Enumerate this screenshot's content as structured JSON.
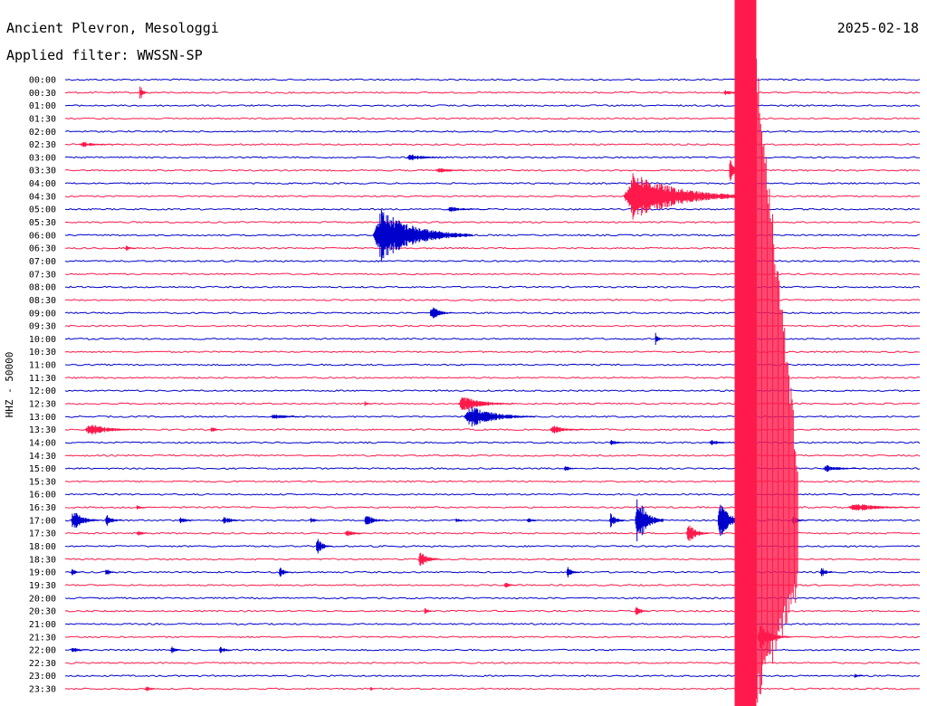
{
  "header": {
    "station": "Ancient Plevron, Mesologgi",
    "date": "2025-02-18",
    "filter": "Applied filter: WWSSN-SP"
  },
  "chart_data": {
    "type": "line",
    "title": "",
    "ylabel": "HHZ - 50000",
    "xlabel": "",
    "grid": false,
    "legend": "none",
    "trace_colors": [
      "#0000cc",
      "#ff1a4b"
    ],
    "tick_labels": [
      "00:00",
      "00:30",
      "01:00",
      "01:30",
      "02:00",
      "02:30",
      "03:00",
      "03:30",
      "04:00",
      "04:30",
      "05:00",
      "05:30",
      "06:00",
      "06:30",
      "07:00",
      "07:30",
      "08:00",
      "08:30",
      "09:00",
      "09:30",
      "10:00",
      "10:30",
      "11:00",
      "11:30",
      "12:00",
      "12:30",
      "13:00",
      "13:30",
      "14:00",
      "14:30",
      "15:00",
      "15:30",
      "16:00",
      "16:30",
      "17:00",
      "17:30",
      "18:00",
      "18:30",
      "19:00",
      "19:30",
      "20:00",
      "20:30",
      "21:00",
      "21:30",
      "22:00",
      "22:30",
      "23:00",
      "23:30"
    ],
    "x_range_minutes": [
      0,
      30
    ],
    "large_event": {
      "start_minute": 23.5,
      "rows": [
        "00:00",
        "23:30"
      ]
    },
    "events": [
      {
        "row": "00:30",
        "minute": 2.6,
        "amplitude": 10,
        "duration": 0.3
      },
      {
        "row": "00:30",
        "minute": 23.1,
        "amplitude": 3,
        "duration": 1
      },
      {
        "row": "02:30",
        "minute": 0.5,
        "amplitude": 3,
        "duration": 1.5
      },
      {
        "row": "03:00",
        "minute": 12.0,
        "amplitude": 4,
        "duration": 1.5
      },
      {
        "row": "03:30",
        "minute": 13.0,
        "amplitude": 3,
        "duration": 1.5
      },
      {
        "row": "03:30",
        "minute": 23.3,
        "amplitude": 14,
        "duration": 0.5
      },
      {
        "row": "04:30",
        "minute": 19.6,
        "amplitude": 28,
        "duration": 4.5
      },
      {
        "row": "05:00",
        "minute": 13.4,
        "amplitude": 3,
        "duration": 1.5
      },
      {
        "row": "06:00",
        "minute": 10.8,
        "amplitude": 30,
        "duration": 3.5
      },
      {
        "row": "06:30",
        "minute": 2.1,
        "amplitude": 3,
        "duration": 0.5
      },
      {
        "row": "09:00",
        "minute": 12.8,
        "amplitude": 9,
        "duration": 0.8
      },
      {
        "row": "10:00",
        "minute": 20.7,
        "amplitude": 7,
        "duration": 0.3
      },
      {
        "row": "12:30",
        "minute": 10.5,
        "amplitude": 3,
        "duration": 0.3
      },
      {
        "row": "12:30",
        "minute": 13.8,
        "amplitude": 9,
        "duration": 2
      },
      {
        "row": "13:00",
        "minute": 7.2,
        "amplitude": 3,
        "duration": 1.5
      },
      {
        "row": "13:00",
        "minute": 14.0,
        "amplitude": 13,
        "duration": 2.5
      },
      {
        "row": "13:30",
        "minute": 0.7,
        "amplitude": 7,
        "duration": 2
      },
      {
        "row": "13:30",
        "minute": 5.1,
        "amplitude": 4,
        "duration": 0.4
      },
      {
        "row": "13:30",
        "minute": 17.0,
        "amplitude": 5,
        "duration": 1.5
      },
      {
        "row": "14:00",
        "minute": 19.1,
        "amplitude": 3,
        "duration": 0.8
      },
      {
        "row": "14:00",
        "minute": 22.6,
        "amplitude": 3,
        "duration": 1
      },
      {
        "row": "15:00",
        "minute": 17.5,
        "amplitude": 4,
        "duration": 0.5
      },
      {
        "row": "15:00",
        "minute": 26.6,
        "amplitude": 4,
        "duration": 1.5
      },
      {
        "row": "16:30",
        "minute": 2.5,
        "amplitude": 3,
        "duration": 0.4
      },
      {
        "row": "16:30",
        "minute": 27.5,
        "amplitude": 5,
        "duration": 2.5
      },
      {
        "row": "17:00",
        "minute": 0.2,
        "amplitude": 12,
        "duration": 1
      },
      {
        "row": "17:00",
        "minute": 1.4,
        "amplitude": 8,
        "duration": 0.6
      },
      {
        "row": "17:00",
        "minute": 4.0,
        "amplitude": 4,
        "duration": 0.6
      },
      {
        "row": "17:00",
        "minute": 5.5,
        "amplitude": 5,
        "duration": 0.8
      },
      {
        "row": "17:00",
        "minute": 8.6,
        "amplitude": 4,
        "duration": 0.4
      },
      {
        "row": "17:00",
        "minute": 10.5,
        "amplitude": 7,
        "duration": 0.8
      },
      {
        "row": "17:00",
        "minute": 13.7,
        "amplitude": 3,
        "duration": 0.4
      },
      {
        "row": "17:00",
        "minute": 16.2,
        "amplitude": 4,
        "duration": 0.5
      },
      {
        "row": "17:00",
        "minute": 19.1,
        "amplitude": 8,
        "duration": 0.6
      },
      {
        "row": "17:00",
        "minute": 20.0,
        "amplitude": 30,
        "duration": 1
      },
      {
        "row": "17:00",
        "minute": 22.9,
        "amplitude": 22,
        "duration": 1
      },
      {
        "row": "17:00",
        "minute": 23.8,
        "amplitude": 5,
        "duration": 0.4
      },
      {
        "row": "17:00",
        "minute": 25.5,
        "amplitude": 5,
        "duration": 0.6
      },
      {
        "row": "17:30",
        "minute": 2.5,
        "amplitude": 3,
        "duration": 0.6
      },
      {
        "row": "17:30",
        "minute": 9.8,
        "amplitude": 4,
        "duration": 0.8
      },
      {
        "row": "17:30",
        "minute": 21.8,
        "amplitude": 12,
        "duration": 0.8
      },
      {
        "row": "18:00",
        "minute": 8.8,
        "amplitude": 10,
        "duration": 0.6
      },
      {
        "row": "18:30",
        "minute": 12.4,
        "amplitude": 9,
        "duration": 0.8
      },
      {
        "row": "19:00",
        "minute": 0.2,
        "amplitude": 5,
        "duration": 0.4
      },
      {
        "row": "19:00",
        "minute": 1.4,
        "amplitude": 5,
        "duration": 0.4
      },
      {
        "row": "19:00",
        "minute": 7.5,
        "amplitude": 6,
        "duration": 0.5
      },
      {
        "row": "19:00",
        "minute": 17.6,
        "amplitude": 7,
        "duration": 0.5
      },
      {
        "row": "19:00",
        "minute": 26.5,
        "amplitude": 7,
        "duration": 0.5
      },
      {
        "row": "19:30",
        "minute": 15.4,
        "amplitude": 4,
        "duration": 0.5
      },
      {
        "row": "20:30",
        "minute": 12.6,
        "amplitude": 4,
        "duration": 0.4
      },
      {
        "row": "20:30",
        "minute": 20.0,
        "amplitude": 7,
        "duration": 0.5
      },
      {
        "row": "21:30",
        "minute": 24.3,
        "amplitude": 14,
        "duration": 1.2
      },
      {
        "row": "22:00",
        "minute": 0.2,
        "amplitude": 3,
        "duration": 0.8
      },
      {
        "row": "22:00",
        "minute": 3.7,
        "amplitude": 4,
        "duration": 0.5
      },
      {
        "row": "22:00",
        "minute": 5.4,
        "amplitude": 5,
        "duration": 0.5
      },
      {
        "row": "23:00",
        "minute": 27.7,
        "amplitude": 3,
        "duration": 0.4
      },
      {
        "row": "23:30",
        "minute": 2.8,
        "amplitude": 4,
        "duration": 0.5
      },
      {
        "row": "23:30",
        "minute": 10.7,
        "amplitude": 3,
        "duration": 0.2
      }
    ]
  }
}
